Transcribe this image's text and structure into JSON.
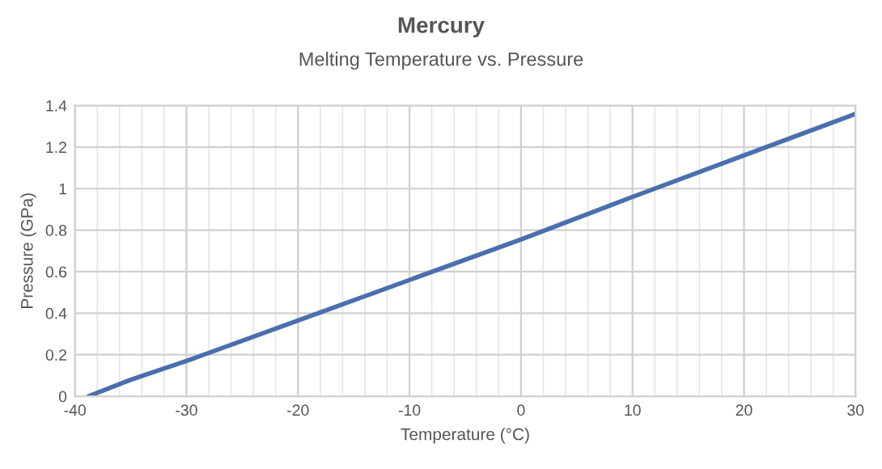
{
  "chart_data": {
    "type": "line",
    "title": "Mercury",
    "subtitle": "Melting Temperature vs. Pressure",
    "xlabel": "Temperature (°C)",
    "ylabel": "Pressure (GPa)",
    "series": [
      {
        "color": "#4a6fae",
        "x": [
          -38.8,
          -35,
          -30,
          -20,
          -10,
          0,
          10,
          20,
          30
        ],
        "values": [
          0,
          0.08,
          0.17,
          0.365,
          0.56,
          0.755,
          0.96,
          1.16,
          1.36
        ]
      }
    ],
    "xlim": [
      -40,
      30
    ],
    "xticks": [
      -40,
      -30,
      -20,
      -10,
      0,
      10,
      20,
      30
    ],
    "ylim": [
      0,
      1.4
    ],
    "yticks": [
      0,
      0.2,
      0.4,
      0.6,
      0.8,
      1,
      1.2,
      1.4
    ],
    "grid": true,
    "marker": "none",
    "line_style": "solid"
  }
}
